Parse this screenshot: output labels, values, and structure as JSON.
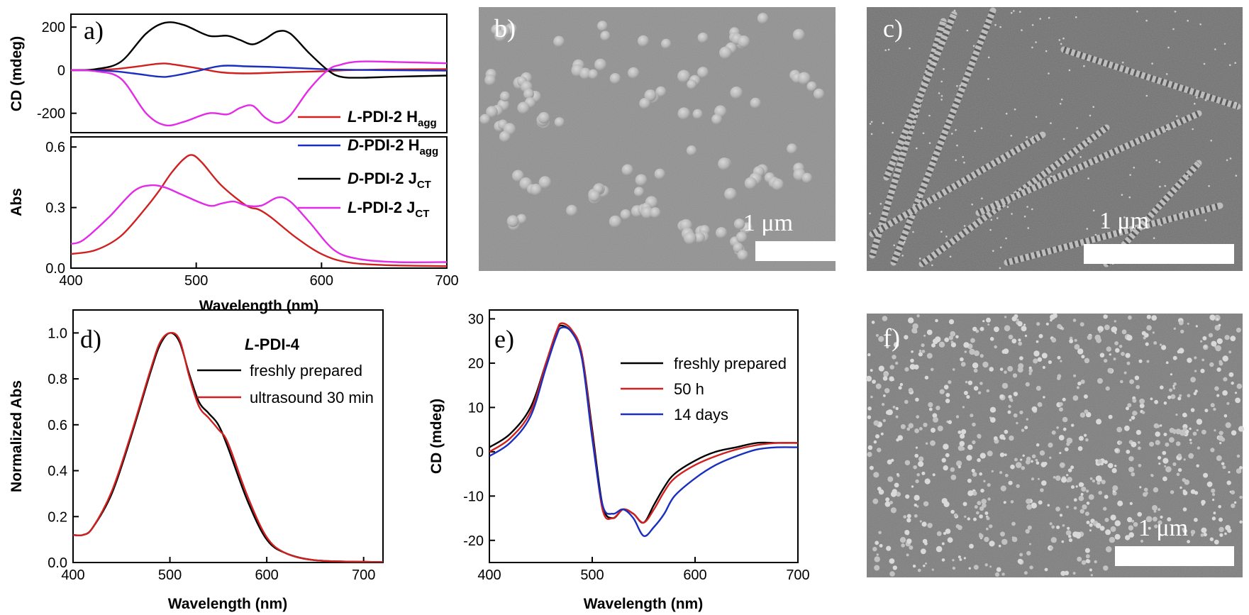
{
  "chart_data": [
    {
      "panel": "a)",
      "type": "line",
      "subplots": [
        {
          "ylabel": "CD (mdeg)",
          "ylim": [
            -290,
            260
          ],
          "yticks": [
            "200",
            "0",
            "-200"
          ],
          "ytick_values": [
            200,
            0,
            -200
          ],
          "series": [
            {
              "name": "L-PDI-2 Hagg",
              "color": "#d02020",
              "x": [
                400,
                430,
                450,
                470,
                480,
                500,
                520,
                540,
                560,
                580,
                600,
                620,
                650,
                700
              ],
              "y": [
                0,
                3,
                15,
                30,
                28,
                10,
                -10,
                -15,
                -12,
                -8,
                -5,
                0,
                3,
                5
              ]
            },
            {
              "name": "D-PDI-2 Hagg",
              "color": "#1a2fbf",
              "x": [
                400,
                430,
                450,
                470,
                480,
                500,
                520,
                540,
                560,
                580,
                600,
                620,
                650,
                700
              ],
              "y": [
                0,
                -3,
                -15,
                -30,
                -28,
                -5,
                20,
                18,
                15,
                10,
                5,
                2,
                0,
                -2
              ]
            },
            {
              "name": "D-PDI-2 JCT",
              "color": "#000000",
              "x": [
                400,
                420,
                440,
                460,
                475,
                490,
                510,
                525,
                535,
                545,
                555,
                565,
                575,
                590,
                605,
                615,
                630,
                660,
                700
              ],
              "y": [
                0,
                5,
                40,
                170,
                220,
                210,
                160,
                160,
                140,
                120,
                145,
                180,
                170,
                80,
                0,
                -30,
                -35,
                -30,
                -25
              ]
            },
            {
              "name": "L-PDI-2 JCT",
              "color": "#e22ae8",
              "x": [
                400,
                420,
                440,
                460,
                475,
                490,
                510,
                525,
                535,
                545,
                555,
                565,
                575,
                590,
                605,
                615,
                630,
                660,
                700
              ],
              "y": [
                0,
                -5,
                -40,
                -200,
                -255,
                -240,
                -200,
                -205,
                -175,
                -165,
                -220,
                -245,
                -210,
                -90,
                0,
                25,
                40,
                38,
                32
              ]
            }
          ]
        },
        {
          "ylabel": "Abs",
          "ylim": [
            0,
            0.65
          ],
          "yticks": [
            "0.0",
            "0.3",
            "0.6"
          ],
          "ytick_values": [
            0,
            0.3,
            0.6
          ],
          "series": [
            {
              "color": "#d02020",
              "x": [
                400,
                420,
                440,
                460,
                470,
                480,
                490,
                497,
                505,
                520,
                540,
                550,
                560,
                580,
                600,
                620,
                650,
                700
              ],
              "y": [
                0.07,
                0.09,
                0.16,
                0.3,
                0.38,
                0.47,
                0.54,
                0.56,
                0.52,
                0.41,
                0.31,
                0.29,
                0.25,
                0.15,
                0.07,
                0.03,
                0.015,
                0.01
              ]
            },
            {
              "color": "#e22ae8",
              "x": [
                400,
                410,
                430,
                450,
                463,
                475,
                490,
                510,
                520,
                530,
                540,
                552,
                565,
                575,
                590,
                610,
                630,
                660,
                700
              ],
              "y": [
                0.12,
                0.14,
                0.25,
                0.38,
                0.41,
                0.4,
                0.36,
                0.31,
                0.32,
                0.33,
                0.31,
                0.31,
                0.35,
                0.33,
                0.23,
                0.09,
                0.045,
                0.03,
                0.03
              ]
            }
          ]
        }
      ],
      "xlabel": "Wavelength (nm)",
      "xlim": [
        400,
        700
      ],
      "xticks": [
        "400",
        "500",
        "600",
        "700"
      ],
      "xtick_values": [
        400,
        500,
        600,
        700
      ],
      "legend": [
        {
          "prefix": "L",
          "main": "-PDI-2 H",
          "sub": "agg",
          "color": "#d02020"
        },
        {
          "prefix": "D",
          "main": "-PDI-2 H",
          "sub": "agg",
          "color": "#1a2fbf"
        },
        {
          "prefix": "D",
          "main": "-PDI-2 J",
          "sub": "CT",
          "color": "#000000"
        },
        {
          "prefix": "L",
          "main": "-PDI-2 J",
          "sub": "CT",
          "color": "#e22ae8"
        }
      ]
    },
    {
      "panel": "d)",
      "type": "line",
      "xlabel": "Wavelength (nm)",
      "ylabel": "Normalized Abs",
      "xlim": [
        400,
        720
      ],
      "ylim": [
        0,
        1.1
      ],
      "xticks": [
        "400",
        "500",
        "600",
        "700"
      ],
      "xtick_values": [
        400,
        500,
        600,
        700
      ],
      "yticks": [
        "0.0",
        "0.2",
        "0.4",
        "0.6",
        "0.8",
        "1.0"
      ],
      "ytick_values": [
        0,
        0.2,
        0.4,
        0.6,
        0.8,
        1.0
      ],
      "legend_title": "L-PDI-4",
      "legend_title_prefix": "L",
      "legend_title_rest": "-PDI-4",
      "series": [
        {
          "name": "freshly prepared",
          "color": "#000000",
          "x": [
            400,
            410,
            420,
            440,
            460,
            480,
            490,
            500,
            510,
            520,
            530,
            540,
            550,
            560,
            580,
            600,
            620,
            650,
            700,
            720
          ],
          "y": [
            0.12,
            0.12,
            0.15,
            0.3,
            0.55,
            0.83,
            0.95,
            1.0,
            0.96,
            0.82,
            0.7,
            0.65,
            0.6,
            0.5,
            0.27,
            0.1,
            0.04,
            0.01,
            0.003,
            0.002
          ]
        },
        {
          "name": "ultrasound 30 min",
          "color": "#d02020",
          "x": [
            400,
            410,
            420,
            440,
            460,
            480,
            490,
            500,
            510,
            520,
            530,
            540,
            550,
            560,
            580,
            600,
            620,
            650,
            700,
            720
          ],
          "y": [
            0.12,
            0.12,
            0.15,
            0.31,
            0.56,
            0.84,
            0.96,
            1.0,
            0.97,
            0.81,
            0.68,
            0.63,
            0.58,
            0.52,
            0.29,
            0.11,
            0.04,
            0.01,
            0.003,
            0.002
          ]
        }
      ]
    },
    {
      "panel": "e)",
      "type": "line",
      "xlabel": "Wavelength (nm)",
      "ylabel": "CD (mdeg)",
      "xlim": [
        400,
        700
      ],
      "ylim": [
        -25,
        32
      ],
      "xticks": [
        "400",
        "500",
        "600",
        "700"
      ],
      "xtick_values": [
        400,
        500,
        600,
        700
      ],
      "yticks": [
        "-20",
        "-10",
        "0",
        "10",
        "20",
        "30"
      ],
      "ytick_values": [
        -20,
        -10,
        0,
        10,
        20,
        30
      ],
      "series": [
        {
          "name": "freshly prepared",
          "color": "#000000",
          "x": [
            400,
            420,
            440,
            455,
            465,
            470,
            480,
            490,
            500,
            510,
            520,
            530,
            540,
            550,
            560,
            570,
            580,
            600,
            620,
            640,
            660,
            680,
            700
          ],
          "y": [
            1,
            4,
            10,
            20,
            27,
            28.5,
            27,
            22,
            5,
            -12,
            -15,
            -13,
            -14,
            -16,
            -12,
            -8,
            -5,
            -2,
            0,
            1,
            2,
            2,
            2
          ]
        },
        {
          "name": "50 h",
          "color": "#d02020",
          "x": [
            400,
            420,
            440,
            455,
            465,
            470,
            480,
            490,
            500,
            510,
            520,
            530,
            540,
            550,
            560,
            570,
            580,
            600,
            620,
            640,
            660,
            680,
            700
          ],
          "y": [
            0,
            3,
            9,
            20,
            27,
            29,
            27.5,
            22,
            4,
            -13,
            -15,
            -13,
            -14,
            -16,
            -13,
            -9,
            -6,
            -3,
            -1,
            0.5,
            1.5,
            2,
            2
          ]
        },
        {
          "name": "14 days",
          "color": "#1a2fbf",
          "x": [
            400,
            420,
            440,
            455,
            465,
            470,
            480,
            490,
            500,
            510,
            520,
            530,
            540,
            550,
            560,
            570,
            580,
            600,
            620,
            640,
            660,
            680,
            700
          ],
          "y": [
            -1,
            2,
            8,
            19,
            26,
            28,
            27,
            21,
            3,
            -12,
            -14,
            -13,
            -15,
            -19,
            -17,
            -14,
            -10,
            -6,
            -3,
            -1,
            0.5,
            1,
            1
          ]
        }
      ]
    }
  ],
  "images": [
    {
      "panel": "b)",
      "scale_label": "1 μm"
    },
    {
      "panel": "c)",
      "scale_label": "1 μm"
    },
    {
      "panel": "f)",
      "scale_label": "1 μm"
    }
  ]
}
